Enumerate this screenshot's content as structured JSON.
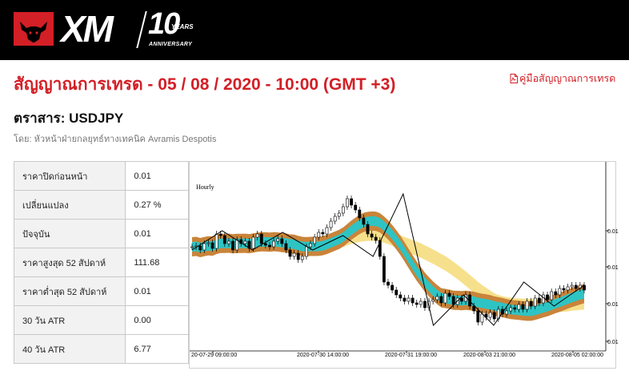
{
  "header": {
    "logo_text": "XM",
    "anniversary_number": "10",
    "anniversary_years": "YEARS",
    "anniversary_label": "ANNIVERSARY",
    "brand_color": "#d31f26",
    "logo_icon": "bull-icon"
  },
  "page": {
    "title": "สัญญาณการเทรด - 05 / 08 / 2020 - 10:00 (GMT +3)",
    "guide_link": "คู่มือสัญญาณการเทรด",
    "guide_icon": "pdf-icon",
    "instrument": "ตราสาร: USDJPY",
    "author": "โดย: หัวหน้าฝ่ายกลยุทธ์ทางเทคนิค Avramis Despotis"
  },
  "stats": [
    {
      "label": "ราคาปิดก่อนหน้า",
      "value": "0.01"
    },
    {
      "label": "เปลี่ยนแปลง",
      "value": "0.27 %"
    },
    {
      "label": "ปัจจุบัน",
      "value": "0.01"
    },
    {
      "label": "ราคาสูงสุด 52 สัปดาห์",
      "value": "111.68"
    },
    {
      "label": "ราคาต่ำสุด 52 สัปดาห์",
      "value": "0.01"
    },
    {
      "label": "30 วัน ATR",
      "value": "0.00"
    },
    {
      "label": "40 วัน ATR",
      "value": "6.77"
    }
  ],
  "chart_data": {
    "type": "candlestick",
    "period": "Hourly",
    "x_tick_labels": [
      "20-07-29 09:00:00",
      "2020-07-30 14:00:00",
      "2020-07-31 19:00:00",
      "2020-08-03 21:00:00",
      "2020-08-05 02:00:00"
    ],
    "y_tick_labels": [
      "0.01",
      "0.01",
      "0.01",
      "0.01"
    ],
    "series": [
      {
        "kind": "close_path",
        "values": [
          0.62,
          0.625,
          0.6,
          0.64,
          0.645,
          0.61,
          0.7,
          0.69,
          0.64,
          0.655,
          0.6,
          0.665,
          0.64,
          0.655,
          0.61,
          0.68,
          0.7,
          0.64,
          0.63,
          0.62,
          0.655,
          0.67,
          0.64,
          0.6,
          0.56,
          0.58,
          0.54,
          0.56,
          0.62,
          0.64,
          0.68,
          0.71,
          0.7,
          0.74,
          0.78,
          0.81,
          0.83,
          0.87,
          0.92,
          0.88,
          0.85,
          0.8,
          0.76,
          0.7,
          0.68,
          0.66,
          0.56,
          0.4,
          0.38,
          0.35,
          0.32,
          0.3,
          0.28,
          0.3,
          0.27,
          0.26,
          0.28,
          0.24,
          0.28,
          0.29,
          0.31,
          0.27,
          0.33,
          0.31,
          0.26,
          0.3,
          0.28,
          0.32,
          0.25,
          0.22,
          0.15,
          0.2,
          0.18,
          0.21,
          0.17,
          0.23,
          0.2,
          0.22,
          0.24,
          0.23,
          0.26,
          0.23,
          0.28,
          0.25,
          0.3,
          0.27,
          0.32,
          0.29,
          0.34,
          0.32,
          0.36,
          0.35,
          0.37,
          0.38,
          0.36,
          0.38,
          0.35
        ]
      },
      {
        "kind": "zigzag",
        "values": [
          0.6,
          0.72,
          0.6,
          0.71,
          0.6,
          0.69,
          0.56,
          0.95,
          0.13,
          0.32,
          0.13,
          0.4,
          0.25,
          0.38
        ]
      }
    ],
    "bands": [
      {
        "name": "",
        "color": "#f6e08b",
        "note": "light yellow band"
      },
      {
        "name": "",
        "color": "#c9843a",
        "note": "brown band"
      },
      {
        "name": "",
        "color": "#2ec4c4",
        "note": "cyan band"
      }
    ],
    "grid": false,
    "y_axis_position": "right"
  }
}
